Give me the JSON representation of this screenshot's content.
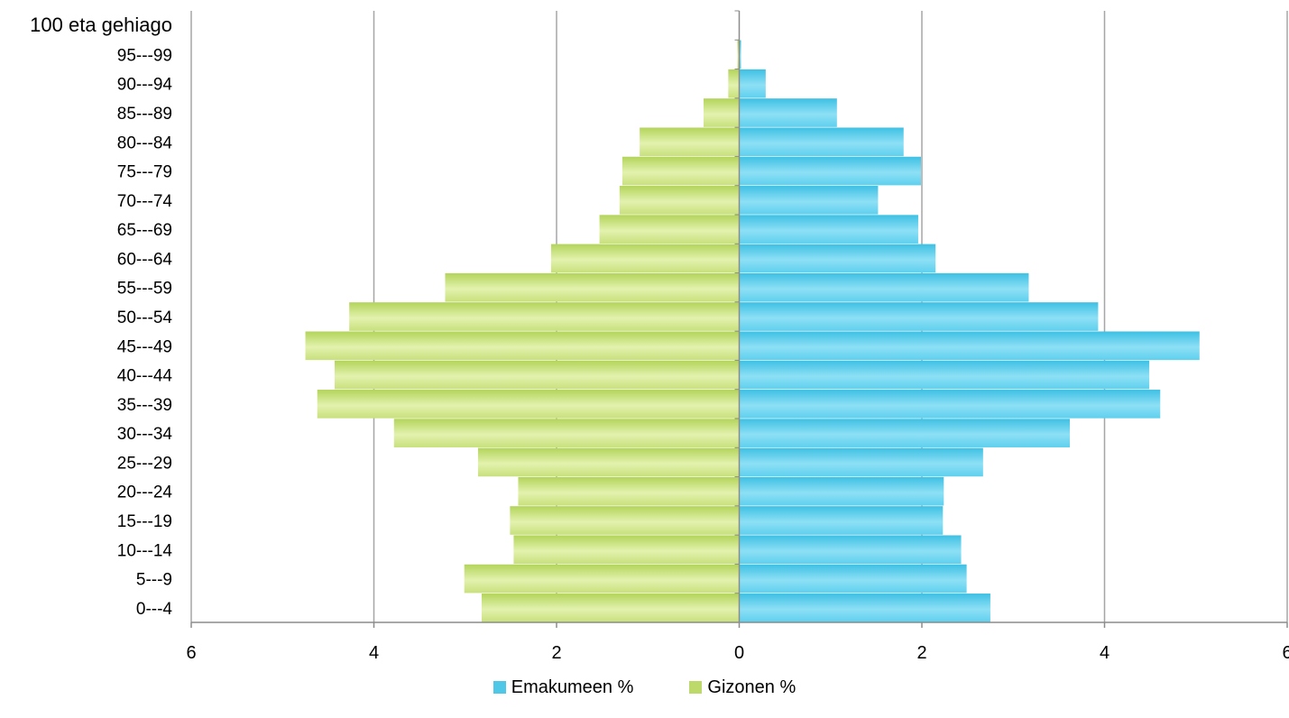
{
  "chart_data": {
    "type": "bar",
    "orientation": "horizontal",
    "layout": "population-pyramid",
    "categories": [
      "0---4",
      "5---9",
      "10---14",
      "15---19",
      "20---24",
      "25---29",
      "30---34",
      "35---39",
      "40---44",
      "45---49",
      "50---54",
      "55---59",
      "60---64",
      "65---69",
      "70---74",
      "75---79",
      "80---84",
      "85---89",
      "90---94",
      "95---99",
      "100 eta gehiago"
    ],
    "series": [
      {
        "name": "Emakumeen %",
        "side": "right",
        "color": "#4fc8e8",
        "values": [
          2.75,
          2.49,
          2.43,
          2.23,
          2.24,
          2.67,
          3.62,
          4.61,
          4.49,
          5.04,
          3.93,
          3.17,
          2.15,
          1.96,
          1.52,
          1.99,
          1.8,
          1.07,
          0.29,
          0.02,
          0.0
        ]
      },
      {
        "name": "Gizonen %",
        "side": "left",
        "color": "#bcd96a",
        "values": [
          2.82,
          3.01,
          2.47,
          2.51,
          2.42,
          2.86,
          3.78,
          4.62,
          4.43,
          4.75,
          4.27,
          3.22,
          2.06,
          1.53,
          1.31,
          1.28,
          1.09,
          0.39,
          0.12,
          0.02,
          0.0
        ]
      }
    ],
    "xlim": [
      -6,
      6
    ],
    "xticks": [
      -6,
      -4,
      -2,
      0,
      2,
      4,
      6
    ],
    "xtick_labels": [
      "6",
      "4",
      "2",
      "0",
      "2",
      "4",
      "6"
    ],
    "title": "",
    "xlabel": "",
    "ylabel": "",
    "grid": "vertical",
    "legend": "bottom-center"
  },
  "legend": {
    "items": [
      {
        "label": "Emakumeen %",
        "color": "#4fc8e8"
      },
      {
        "label": "Gizonen %",
        "color": "#bcd96a"
      }
    ]
  }
}
